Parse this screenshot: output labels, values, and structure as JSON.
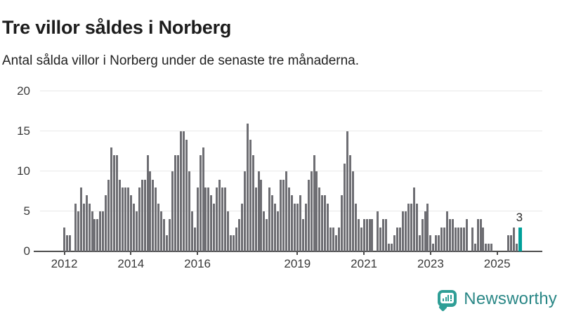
{
  "header": {
    "title": "Tre villor såldes i Norberg",
    "subtitle": "Antal sålda villor i Norberg under de senaste tre månaderna."
  },
  "footer": {
    "brand": "Newsworthy",
    "brand_icon": "bar-chart-speech-bubble-icon"
  },
  "colors": {
    "bar": "#6e6e73",
    "highlight": "#00a09a",
    "gridline": "#e8e8e8",
    "axis": "#4d4d4d",
    "brand_teal": "#2a8786"
  },
  "chart_data": {
    "type": "bar",
    "title": "Tre villor såldes i Norberg",
    "subtitle": "Antal sålda villor i Norberg under de senaste tre månaderna.",
    "start_month": "2012-01",
    "end_month": "2025-09",
    "ylim": [
      0,
      20
    ],
    "y_ticks": [
      0,
      5,
      10,
      15,
      20
    ],
    "x_tick_years": [
      "2012",
      "2014",
      "2016",
      "2019",
      "2021",
      "2023",
      "2025"
    ],
    "grid": true,
    "legend": "none",
    "highlight_last_bar": true,
    "annotation_label": "3",
    "values": [
      3,
      2,
      2,
      0,
      6,
      5,
      8,
      6,
      7,
      6,
      5,
      4,
      4,
      5,
      5,
      7,
      9,
      13,
      12,
      12,
      9,
      8,
      8,
      8,
      7,
      6,
      5,
      8,
      9,
      9,
      12,
      10,
      9,
      8,
      6,
      5,
      4,
      2,
      4,
      10,
      12,
      12,
      15,
      15,
      14,
      10,
      5,
      3,
      8,
      12,
      13,
      8,
      8,
      7,
      6,
      8,
      9,
      8,
      8,
      5,
      2,
      2,
      3,
      4,
      6,
      10,
      16,
      14,
      12,
      8,
      10,
      9,
      5,
      4,
      8,
      7,
      6,
      5,
      9,
      9,
      10,
      8,
      7,
      6,
      6,
      7,
      4,
      6,
      9,
      10,
      12,
      10,
      8,
      7,
      7,
      6,
      3,
      3,
      2,
      3,
      7,
      11,
      15,
      12,
      10,
      6,
      4,
      3,
      4,
      4,
      4,
      4,
      0,
      5,
      3,
      4,
      4,
      1,
      1,
      2,
      3,
      3,
      5,
      5,
      6,
      6,
      8,
      6,
      2,
      4,
      5,
      6,
      2,
      1,
      2,
      2,
      3,
      3,
      5,
      4,
      4,
      3,
      3,
      3,
      3,
      4,
      0,
      3,
      1,
      4,
      4,
      3,
      1,
      1,
      1,
      0,
      0,
      0,
      0,
      0,
      2,
      2,
      3,
      1,
      3
    ]
  }
}
